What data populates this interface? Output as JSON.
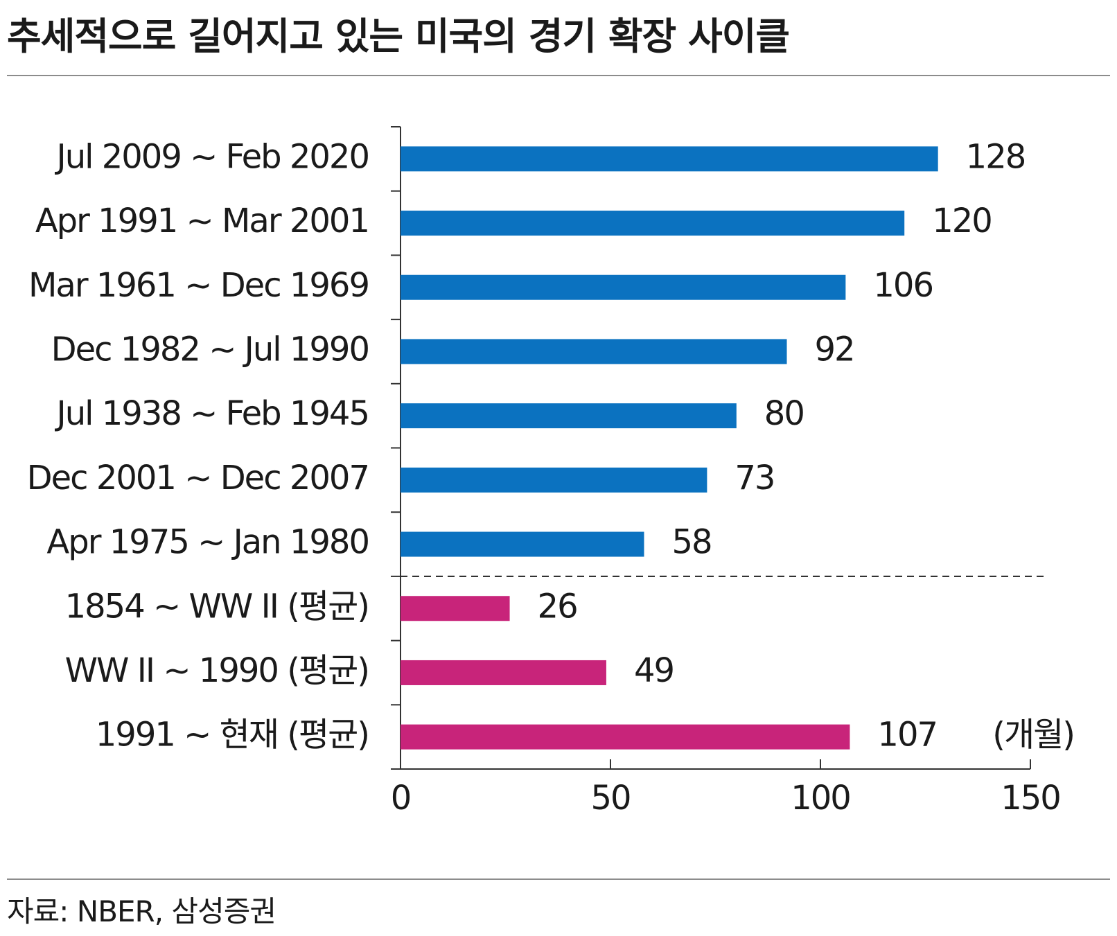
{
  "title": "추세적으로 길어지고 있는 미국의 경기 확장 사이클",
  "source": "자료: NBER, 삼성증권",
  "colors": {
    "primary": "#0b72c0",
    "secondary": "#c8247a"
  },
  "chart_data": {
    "type": "bar",
    "orientation": "horizontal",
    "categories": [
      "Jul 2009 ~ Feb 2020",
      "Apr 1991 ~ Mar 2001",
      "Mar 1961 ~ Dec 1969",
      "Dec 1982 ~ Jul 1990",
      "Jul 1938 ~ Feb 1945",
      "Dec 2001 ~ Dec 2007",
      "Apr 1975 ~ Jan 1980",
      "1854 ~ WW II (평균)",
      "WW II ~ 1990 (평균)",
      "1991 ~ 현재 (평균)"
    ],
    "values": [
      128,
      120,
      106,
      92,
      80,
      73,
      58,
      26,
      49,
      107
    ],
    "group": [
      "primary",
      "primary",
      "primary",
      "primary",
      "primary",
      "primary",
      "primary",
      "secondary",
      "secondary",
      "secondary"
    ],
    "separator_after_index": 6,
    "xlim": [
      0,
      150
    ],
    "xticks": [
      0,
      50,
      100,
      150
    ],
    "unit_label": "(개월)",
    "grid": false
  }
}
